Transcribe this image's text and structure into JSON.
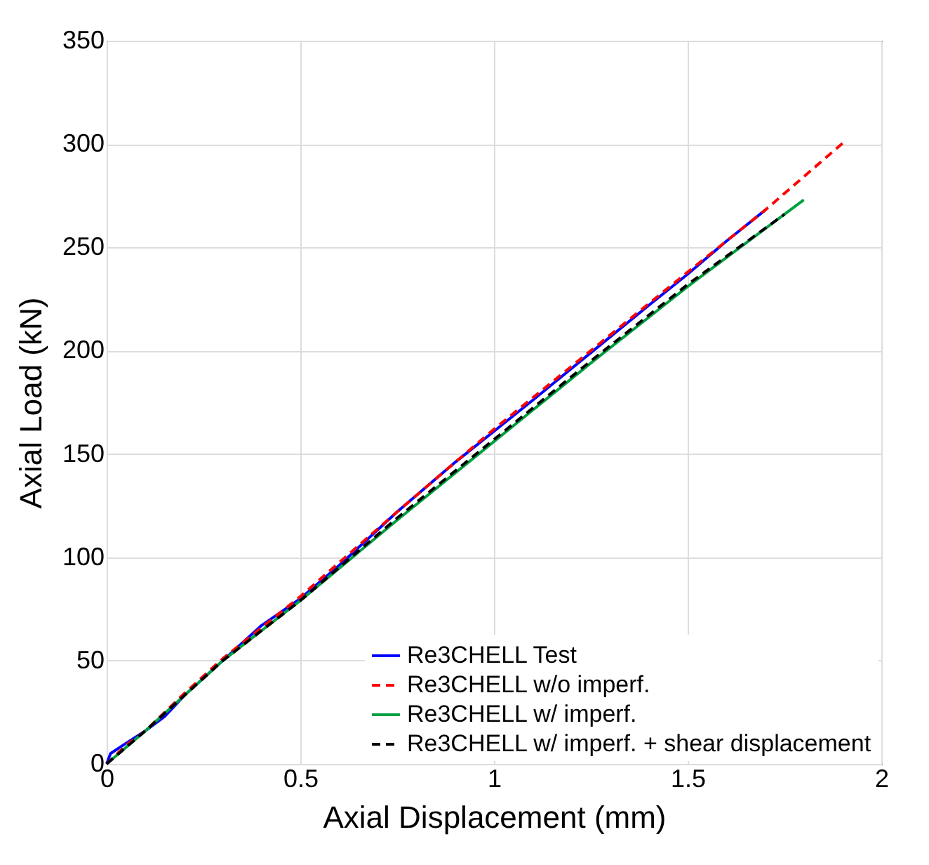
{
  "chart_data": {
    "type": "line",
    "xlabel": "Axial Displacement (mm)",
    "ylabel": "Axial Load (kN)",
    "xlim": [
      0,
      2
    ],
    "ylim": [
      0,
      350
    ],
    "xticks": [
      0,
      0.5,
      1,
      1.5,
      2
    ],
    "yticks": [
      0,
      50,
      100,
      150,
      200,
      250,
      300,
      350
    ],
    "grid": true,
    "legend": "bottom right",
    "series": [
      {
        "name": "Re3CHELL Test",
        "color": "#0000ff",
        "line_style": "solid",
        "x": [
          0,
          0.01,
          0.05,
          0.1,
          0.15,
          0.2,
          0.3,
          0.4,
          0.5,
          0.6,
          0.75,
          0.9,
          1,
          1.1,
          1.25,
          1.4,
          1.5,
          1.6,
          1.7
        ],
        "values": [
          0,
          5,
          10,
          16,
          23,
          33,
          50,
          67,
          80,
          96,
          122,
          146,
          161,
          176,
          199,
          222,
          237,
          253,
          268
        ]
      },
      {
        "name": "Re3CHELL w/o imperf.",
        "color": "#ff0000",
        "line_style": "dashed",
        "x": [
          0,
          0.05,
          0.1,
          0.2,
          0.3,
          0.5,
          0.75,
          1,
          1.25,
          1.5,
          1.7,
          1.91
        ],
        "values": [
          0,
          9,
          16,
          34,
          51,
          81,
          122,
          162,
          200,
          238,
          268,
          302
        ]
      },
      {
        "name": "Re3CHELL w/ imperf.",
        "color": "#00a040",
        "line_style": "solid",
        "x": [
          0,
          0.05,
          0.1,
          0.2,
          0.3,
          0.5,
          0.75,
          1,
          1.25,
          1.5,
          1.8
        ],
        "values": [
          0,
          8,
          16,
          33,
          50,
          79,
          118,
          156,
          194,
          231,
          273
        ]
      },
      {
        "name": "Re3CHELL w/ imperf. + shear displacement",
        "color": "#000000",
        "line_style": "dashed",
        "x": [
          0,
          0.05,
          0.1,
          0.2,
          0.3,
          0.5,
          0.75,
          1,
          1.25,
          1.5,
          1.75
        ],
        "values": [
          0,
          8,
          16,
          33,
          50,
          79,
          119,
          157,
          195,
          232,
          266
        ]
      }
    ]
  }
}
